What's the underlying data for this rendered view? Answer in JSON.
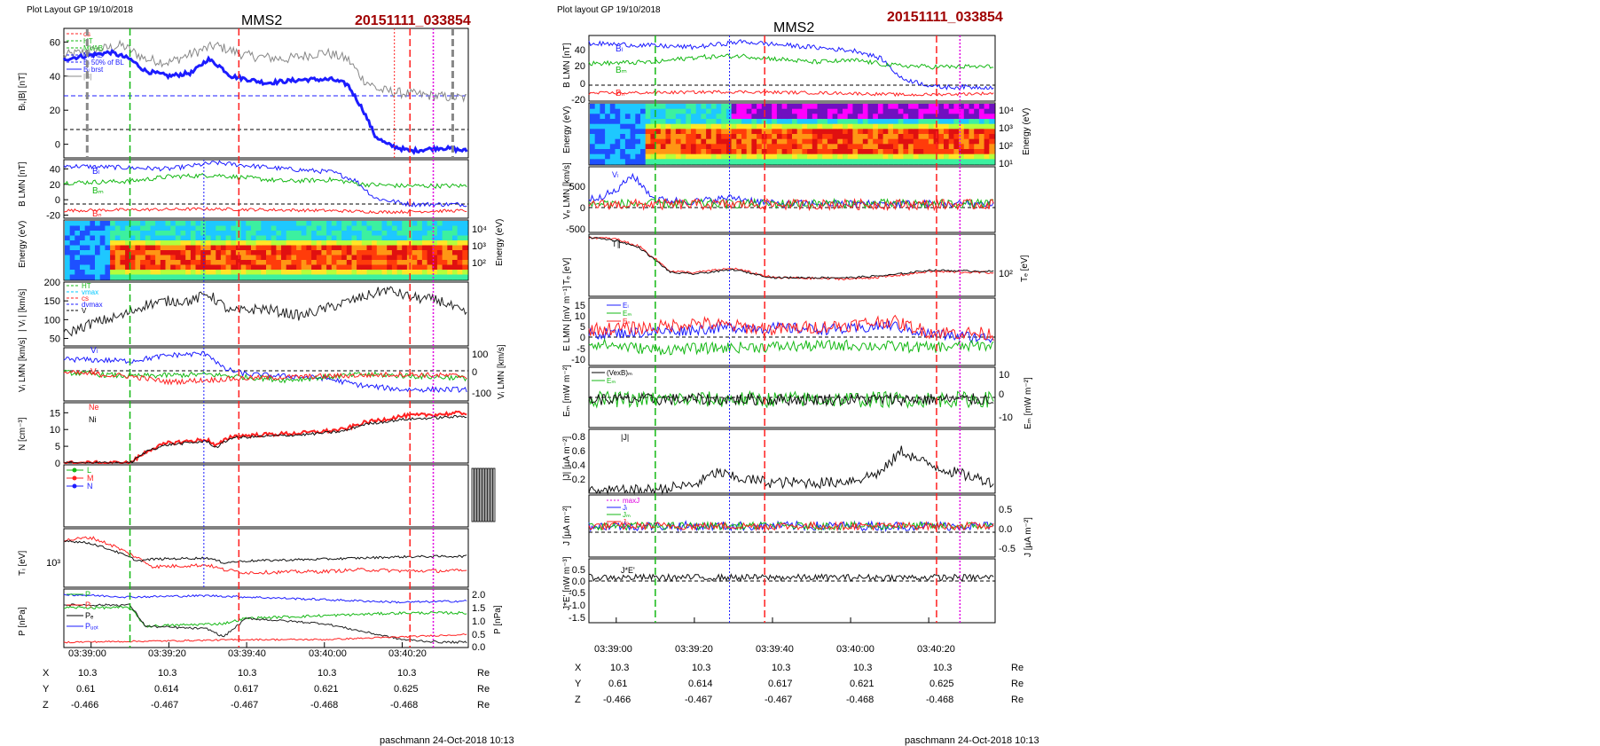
{
  "colors": {
    "red": "#ff2020",
    "green": "#14b814",
    "blue": "#1c1cff",
    "black": "#111111",
    "grey": "#888888",
    "magenta": "#e000e0",
    "title_red": "#a00000"
  },
  "left": {
    "layout_label": "Plot Layout GP 19/10/2018",
    "title": "MMS2",
    "event_id": "20151111_033854",
    "time_ticks": [
      "03:39:00",
      "03:39:20",
      "03:39:40",
      "03:40:00",
      "03:40:20"
    ],
    "ephemeris": [
      {
        "name": "X",
        "values": [
          "10.3",
          "10.3",
          "10.3",
          "10.3",
          "10.3"
        ],
        "unit": "Re"
      },
      {
        "name": "Y",
        "values": [
          "0.61",
          "0.614",
          "0.617",
          "0.621",
          "0.625"
        ],
        "unit": "Re"
      },
      {
        "name": "Z",
        "values": [
          "-0.466",
          "-0.467",
          "-0.467",
          "-0.468",
          "-0.468"
        ],
        "unit": "Re"
      }
    ],
    "footer": "paschmann 24-Oct-2018 10:13",
    "panels": [
      {
        "id": "bl-b",
        "ylabel": "Bₗ,|B| [nT]",
        "yticks": [
          "60",
          "40",
          "20",
          "0"
        ],
        "legend": [
          "cs",
          "HT",
          "MVAB",
          "MVAB",
          "Bₗ 50% of BL",
          "Bₗ brst",
          "|B|"
        ]
      },
      {
        "id": "b-lmn",
        "ylabel": "B LMN [nT]",
        "yticks": [
          "40",
          "20",
          "0",
          "-20"
        ],
        "labels": [
          "Bₗ",
          "Bₘ",
          "Bₙ"
        ]
      },
      {
        "id": "spec",
        "ylabel": "Energy (eV)",
        "rticks": [
          "10⁴",
          "10³",
          "10²"
        ]
      },
      {
        "id": "vi",
        "ylabel": "| Vᵢ | [km/s]",
        "yticks": [
          "200",
          "150",
          "100",
          "50"
        ],
        "legend": [
          "HT",
          "vmax",
          "cs",
          "dvmax",
          "V"
        ]
      },
      {
        "id": "vi-lmn",
        "ylabel": "Vᵢ LMN [km/s]",
        "rticks": [
          "100",
          "0",
          "-100"
        ],
        "labels": [
          "Vₗ",
          "Vₙ"
        ]
      },
      {
        "id": "n",
        "ylabel": "N [cm⁻³]",
        "yticks": [
          "15",
          "10",
          "5",
          "0"
        ],
        "legend": [
          "Ne",
          "Ni"
        ]
      },
      {
        "id": "lmn-dots",
        "ylabel": "",
        "legend": [
          "L",
          "M",
          "N"
        ]
      },
      {
        "id": "ti",
        "ylabel": "Tᵢ [eV]",
        "yticks": [
          "10³"
        ],
        "labels": [
          "T∥",
          "T⊥"
        ]
      },
      {
        "id": "p",
        "ylabel": "P [nPa]",
        "rticks": [
          "2.0",
          "1.5",
          "1.0",
          "0.5",
          "0.0"
        ],
        "legend": [
          "P",
          "Pᵢ",
          "Pₑ",
          "Pᵤₒₜ"
        ]
      }
    ]
  },
  "right": {
    "layout_label": "Plot layout GP 19/10/2018",
    "title": "MMS2",
    "event_id": "20151111_033854",
    "time_ticks": [
      "03:39:00",
      "03:39:20",
      "03:39:40",
      "03:40:00",
      "03:40:20"
    ],
    "ephemeris": [
      {
        "name": "X",
        "values": [
          "10.3",
          "10.3",
          "10.3",
          "10.3",
          "10.3"
        ],
        "unit": "Re"
      },
      {
        "name": "Y",
        "values": [
          "0.61",
          "0.614",
          "0.617",
          "0.621",
          "0.625"
        ],
        "unit": "Re"
      },
      {
        "name": "Z",
        "values": [
          "-0.466",
          "-0.467",
          "-0.467",
          "-0.468",
          "-0.468"
        ],
        "unit": "Re"
      }
    ],
    "footer": "paschmann 24-Oct-2018 10:13",
    "panels": [
      {
        "id": "b-lmn",
        "ylabel": "B LMN [nT]",
        "yticks": [
          "40",
          "20",
          "0",
          "-20"
        ],
        "labels": [
          "Bₗ",
          "Bₘ",
          "Bₙ"
        ]
      },
      {
        "id": "spec",
        "ylabel": "Energy (eV)",
        "rticks": [
          "10⁴",
          "10³",
          "10²",
          "10¹"
        ]
      },
      {
        "id": "ve",
        "ylabel": "Vₑ LMN [km/s]",
        "yticks": [
          "500",
          "0",
          "-500"
        ],
        "labels": [
          "Vₗ"
        ]
      },
      {
        "id": "te",
        "ylabel": "Tₑ [eV]",
        "rticks": [
          "10²"
        ],
        "labels": [
          "T∥"
        ]
      },
      {
        "id": "e-lmn",
        "ylabel": "E LMN [mV m⁻¹]",
        "yticks": [
          "15",
          "10",
          "5",
          "0",
          "-5",
          "-10"
        ],
        "labels": [
          "Eₗ",
          "Eₘ",
          "Eₙ"
        ]
      },
      {
        "id": "em",
        "ylabel": "Eₘ [mW m⁻²]",
        "rticks": [
          "10",
          "0",
          "-10"
        ],
        "labels": [
          "(VexB)ₘ",
          "Eₘ"
        ]
      },
      {
        "id": "j",
        "ylabel": "|J| [µA m⁻²]",
        "yticks": [
          "0.8",
          "0.6",
          "0.4",
          "0.2"
        ],
        "labels": [
          "|J|"
        ]
      },
      {
        "id": "j-lmn",
        "ylabel": "J [µA m⁻²]",
        "rticks": [
          "0.5",
          "0.0",
          "-0.5"
        ],
        "legend": [
          "maxJ",
          "Jₗ",
          "Jₘ",
          "Jₙ"
        ]
      },
      {
        "id": "je",
        "ylabel": "J*E' [nW m⁻³]",
        "yticks": [
          "0.5",
          "0.0",
          "-0.5",
          "-1.0",
          "-1.5"
        ],
        "labels": [
          "J*E'"
        ]
      }
    ]
  },
  "chart_data": [
    {
      "type": "line",
      "title": "MMS2",
      "subtitle": "20151111_033854",
      "x_label_ticks": [
        "03:39:00",
        "03:39:20",
        "03:39:40",
        "03:40:00",
        "03:40:20"
      ],
      "x_seconds_after_0339": [
        -2,
        0,
        20,
        40,
        60,
        80,
        95
      ],
      "series": [
        {
          "name": "Bₗ",
          "x": [
            -2,
            5,
            10,
            14,
            20,
            26,
            30,
            33,
            36,
            45,
            55,
            62,
            66,
            70,
            73,
            76,
            82,
            90,
            95
          ],
          "y": [
            52,
            54,
            50,
            43,
            40,
            42,
            50,
            46,
            40,
            36,
            38,
            38,
            35,
            20,
            5,
            0,
            -4,
            -2,
            -4
          ]
        },
        {
          "name": "|B|",
          "x": [
            -2,
            8,
            14,
            20,
            28,
            32,
            40,
            50,
            60,
            66,
            70,
            74,
            80,
            90,
            95
          ],
          "y": [
            55,
            58,
            50,
            48,
            55,
            58,
            52,
            50,
            54,
            50,
            38,
            32,
            30,
            28,
            27
          ]
        },
        {
          "name": "Ne",
          "x": [
            -2,
            10,
            15,
            20,
            30,
            32,
            36,
            45,
            55,
            65,
            70,
            80,
            95
          ],
          "y": [
            0,
            0,
            4,
            6,
            7,
            5,
            8,
            8.5,
            9,
            10,
            12,
            14,
            15
          ]
        },
        {
          "name": "|J|",
          "x": [
            -2,
            10,
            20,
            26,
            30,
            40,
            55,
            62,
            68,
            73,
            78,
            86,
            95
          ],
          "y": [
            0.02,
            0.05,
            0.12,
            0.3,
            0.22,
            0.15,
            0.15,
            0.2,
            0.3,
            0.6,
            0.45,
            0.3,
            0.15
          ]
        }
      ],
      "markers": [
        {
          "name": "HT",
          "x": 10
        },
        {
          "name": "cs",
          "x": 38
        },
        {
          "name": "cs",
          "x": 82
        },
        {
          "name": "vmax",
          "x": 88
        }
      ]
    }
  ]
}
